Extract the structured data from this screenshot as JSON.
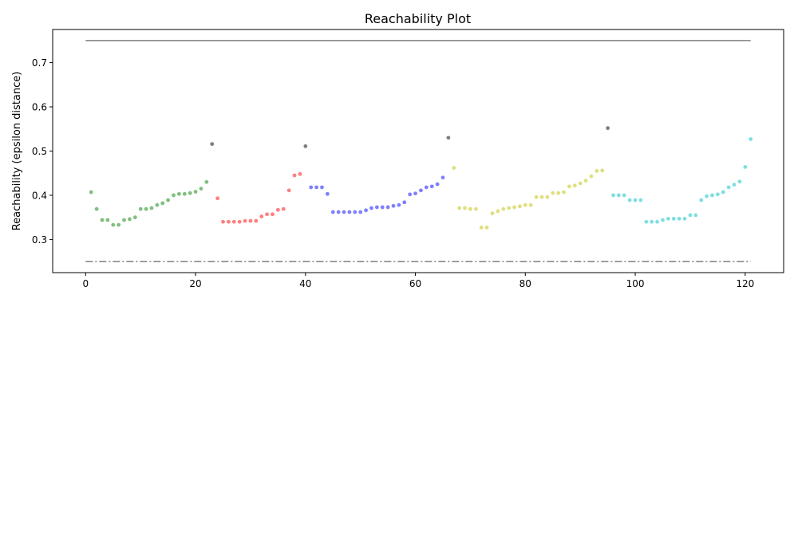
{
  "chart_data": {
    "type": "scatter",
    "title": "Reachability Plot",
    "xlabel": "",
    "ylabel": "Reachability (epsilon distance)",
    "xlim": [
      -6,
      127
    ],
    "ylim": [
      0.225,
      0.775
    ],
    "xticks": [
      0,
      20,
      40,
      60,
      80,
      100,
      120
    ],
    "yticks": [
      0.3,
      0.4,
      0.5,
      0.6,
      0.7
    ],
    "grid": false,
    "reference_lines": [
      {
        "y": 0.75,
        "x": [
          0,
          121
        ],
        "style": "solid",
        "color": "#7f7f7f"
      },
      {
        "y": 0.25,
        "x": [
          0,
          121
        ],
        "style": "dashdot",
        "color": "#7f7f7f"
      }
    ],
    "series": [
      {
        "color": "#7fbf7f",
        "points": [
          [
            1,
            0.407
          ],
          [
            2,
            0.369
          ],
          [
            3,
            0.344
          ],
          [
            4,
            0.344
          ],
          [
            5,
            0.333
          ],
          [
            6,
            0.333
          ],
          [
            7,
            0.344
          ],
          [
            8,
            0.346
          ],
          [
            9,
            0.35
          ],
          [
            10,
            0.369
          ],
          [
            11,
            0.369
          ],
          [
            12,
            0.371
          ],
          [
            13,
            0.378
          ],
          [
            14,
            0.382
          ],
          [
            15,
            0.389
          ],
          [
            16,
            0.4
          ],
          [
            17,
            0.403
          ],
          [
            18,
            0.403
          ],
          [
            19,
            0.405
          ],
          [
            20,
            0.408
          ],
          [
            21,
            0.415
          ],
          [
            22,
            0.43
          ]
        ]
      },
      {
        "color": "#ff7f7f",
        "points": [
          [
            24,
            0.393
          ],
          [
            25,
            0.34
          ],
          [
            26,
            0.34
          ],
          [
            27,
            0.34
          ],
          [
            28,
            0.34
          ],
          [
            29,
            0.342
          ],
          [
            30,
            0.342
          ],
          [
            31,
            0.342
          ],
          [
            32,
            0.352
          ],
          [
            33,
            0.357
          ],
          [
            34,
            0.357
          ],
          [
            35,
            0.367
          ],
          [
            36,
            0.369
          ],
          [
            37,
            0.411
          ],
          [
            38,
            0.445
          ],
          [
            39,
            0.448
          ]
        ]
      },
      {
        "color": "#7f7fff",
        "points": [
          [
            41,
            0.418
          ],
          [
            42,
            0.418
          ],
          [
            43,
            0.418
          ],
          [
            44,
            0.403
          ],
          [
            45,
            0.362
          ],
          [
            46,
            0.362
          ],
          [
            47,
            0.362
          ],
          [
            48,
            0.362
          ],
          [
            49,
            0.362
          ],
          [
            50,
            0.362
          ],
          [
            51,
            0.366
          ],
          [
            52,
            0.371
          ],
          [
            53,
            0.373
          ],
          [
            54,
            0.373
          ],
          [
            55,
            0.373
          ],
          [
            56,
            0.376
          ],
          [
            57,
            0.378
          ],
          [
            58,
            0.384
          ],
          [
            59,
            0.402
          ],
          [
            60,
            0.404
          ],
          [
            61,
            0.411
          ],
          [
            62,
            0.418
          ],
          [
            63,
            0.42
          ],
          [
            64,
            0.425
          ],
          [
            65,
            0.44
          ]
        ]
      },
      {
        "color": "#dfdf7f",
        "points": [
          [
            67,
            0.462
          ],
          [
            68,
            0.371
          ],
          [
            69,
            0.371
          ],
          [
            70,
            0.369
          ],
          [
            71,
            0.369
          ],
          [
            72,
            0.327
          ],
          [
            73,
            0.327
          ],
          [
            74,
            0.359
          ],
          [
            75,
            0.364
          ],
          [
            76,
            0.369
          ],
          [
            77,
            0.371
          ],
          [
            78,
            0.373
          ],
          [
            79,
            0.375
          ],
          [
            80,
            0.378
          ],
          [
            81,
            0.378
          ],
          [
            82,
            0.396
          ],
          [
            83,
            0.396
          ],
          [
            84,
            0.396
          ],
          [
            85,
            0.405
          ],
          [
            86,
            0.405
          ],
          [
            87,
            0.407
          ],
          [
            88,
            0.42
          ],
          [
            89,
            0.422
          ],
          [
            90,
            0.427
          ],
          [
            91,
            0.433
          ],
          [
            92,
            0.443
          ],
          [
            93,
            0.455
          ],
          [
            94,
            0.456
          ]
        ]
      },
      {
        "color": "#7fdfdf",
        "points": [
          [
            96,
            0.4
          ],
          [
            97,
            0.4
          ],
          [
            98,
            0.4
          ],
          [
            99,
            0.389
          ],
          [
            100,
            0.389
          ],
          [
            101,
            0.389
          ],
          [
            102,
            0.34
          ],
          [
            103,
            0.34
          ],
          [
            104,
            0.34
          ],
          [
            105,
            0.344
          ],
          [
            106,
            0.347
          ],
          [
            107,
            0.347
          ],
          [
            108,
            0.347
          ],
          [
            109,
            0.347
          ],
          [
            110,
            0.355
          ],
          [
            111,
            0.355
          ],
          [
            112,
            0.389
          ],
          [
            113,
            0.398
          ],
          [
            114,
            0.4
          ],
          [
            115,
            0.402
          ],
          [
            116,
            0.407
          ],
          [
            117,
            0.418
          ],
          [
            118,
            0.424
          ],
          [
            119,
            0.431
          ],
          [
            120,
            0.464
          ],
          [
            121,
            0.527
          ]
        ]
      },
      {
        "color": "#7f7f7f",
        "points": [
          [
            23,
            0.516
          ],
          [
            40,
            0.511
          ],
          [
            66,
            0.53
          ],
          [
            95,
            0.552
          ]
        ]
      }
    ]
  }
}
